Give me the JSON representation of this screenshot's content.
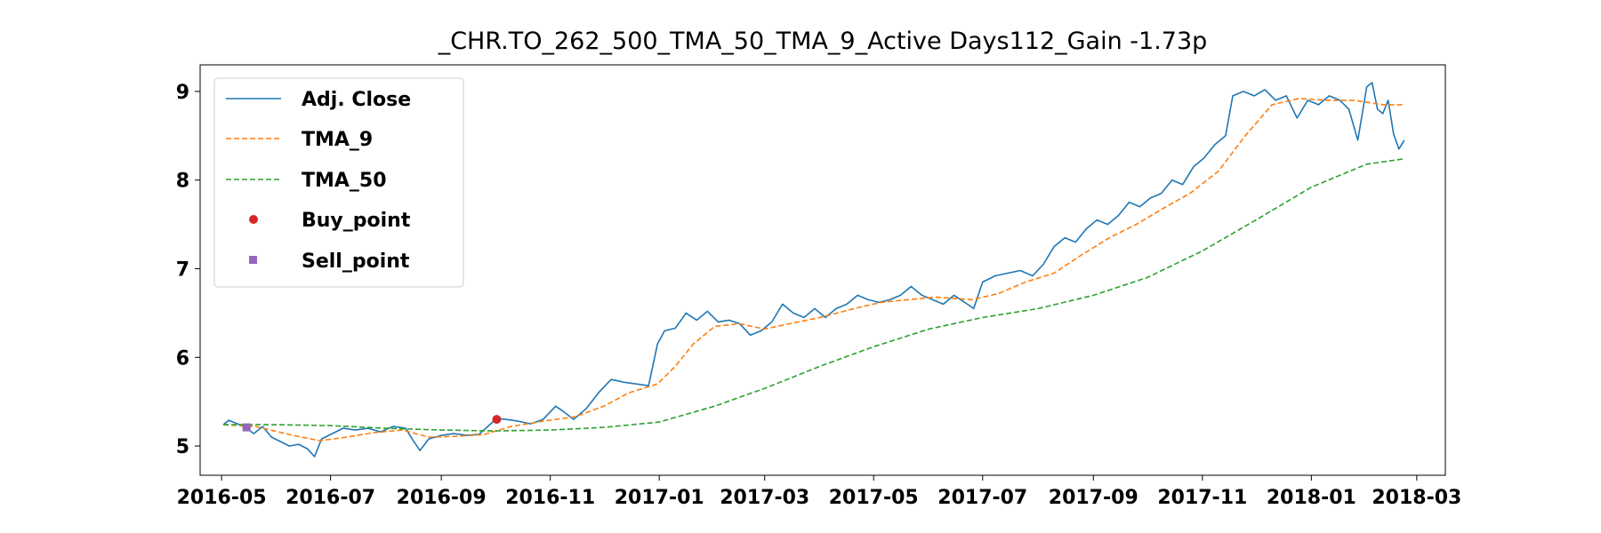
{
  "chart_data": {
    "type": "line",
    "title": "_CHR.TO_262_500_TMA_50_TMA_9_Active Days112_Gain  -1.73p",
    "xlabel": "",
    "ylabel": "",
    "xlim": [
      "2016-04-19",
      "2018-03-17"
    ],
    "ylim": [
      4.67,
      9.3
    ],
    "xticks": [
      "2016-05",
      "2016-07",
      "2016-09",
      "2016-11",
      "2017-01",
      "2017-03",
      "2017-05",
      "2017-07",
      "2017-09",
      "2017-11",
      "2018-01",
      "2018-03"
    ],
    "yticks": [
      5,
      6,
      7,
      8,
      9
    ],
    "grid": false,
    "legend_position": "upper-left",
    "series": [
      {
        "name": "Adj. Close",
        "color": "#1f77b4",
        "style": "solid",
        "points": [
          [
            "2016-05-02",
            5.24
          ],
          [
            "2016-05-05",
            5.29
          ],
          [
            "2016-05-10",
            5.25
          ],
          [
            "2016-05-15",
            5.2
          ],
          [
            "2016-05-19",
            5.14
          ],
          [
            "2016-05-24",
            5.22
          ],
          [
            "2016-05-29",
            5.1
          ],
          [
            "2016-06-03",
            5.05
          ],
          [
            "2016-06-08",
            5.0
          ],
          [
            "2016-06-13",
            5.02
          ],
          [
            "2016-06-18",
            4.97
          ],
          [
            "2016-06-22",
            4.88
          ],
          [
            "2016-06-26",
            5.08
          ],
          [
            "2016-07-01",
            5.13
          ],
          [
            "2016-07-08",
            5.2
          ],
          [
            "2016-07-15",
            5.18
          ],
          [
            "2016-07-22",
            5.2
          ],
          [
            "2016-07-29",
            5.16
          ],
          [
            "2016-08-05",
            5.22
          ],
          [
            "2016-08-12",
            5.2
          ],
          [
            "2016-08-16",
            5.07
          ],
          [
            "2016-08-20",
            4.95
          ],
          [
            "2016-08-25",
            5.08
          ],
          [
            "2016-09-01",
            5.12
          ],
          [
            "2016-09-08",
            5.14
          ],
          [
            "2016-09-15",
            5.12
          ],
          [
            "2016-09-22",
            5.13
          ],
          [
            "2016-09-27",
            5.22
          ],
          [
            "2016-10-02",
            5.31
          ],
          [
            "2016-10-07",
            5.3
          ],
          [
            "2016-10-14",
            5.28
          ],
          [
            "2016-10-21",
            5.25
          ],
          [
            "2016-10-28",
            5.3
          ],
          [
            "2016-11-04",
            5.45
          ],
          [
            "2016-11-09",
            5.38
          ],
          [
            "2016-11-14",
            5.3
          ],
          [
            "2016-11-21",
            5.42
          ],
          [
            "2016-11-28",
            5.6
          ],
          [
            "2016-12-05",
            5.75
          ],
          [
            "2016-12-12",
            5.72
          ],
          [
            "2016-12-19",
            5.7
          ],
          [
            "2016-12-26",
            5.68
          ],
          [
            "2016-12-31",
            6.15
          ],
          [
            "2017-01-04",
            6.3
          ],
          [
            "2017-01-10",
            6.33
          ],
          [
            "2017-01-16",
            6.5
          ],
          [
            "2017-01-22",
            6.42
          ],
          [
            "2017-01-28",
            6.52
          ],
          [
            "2017-02-03",
            6.4
          ],
          [
            "2017-02-09",
            6.42
          ],
          [
            "2017-02-15",
            6.38
          ],
          [
            "2017-02-21",
            6.25
          ],
          [
            "2017-02-27",
            6.3
          ],
          [
            "2017-03-05",
            6.4
          ],
          [
            "2017-03-11",
            6.6
          ],
          [
            "2017-03-17",
            6.5
          ],
          [
            "2017-03-23",
            6.45
          ],
          [
            "2017-03-29",
            6.55
          ],
          [
            "2017-04-04",
            6.45
          ],
          [
            "2017-04-10",
            6.55
          ],
          [
            "2017-04-16",
            6.6
          ],
          [
            "2017-04-22",
            6.7
          ],
          [
            "2017-04-28",
            6.65
          ],
          [
            "2017-05-04",
            6.62
          ],
          [
            "2017-05-10",
            6.65
          ],
          [
            "2017-05-16",
            6.7
          ],
          [
            "2017-05-22",
            6.8
          ],
          [
            "2017-05-28",
            6.7
          ],
          [
            "2017-06-03",
            6.65
          ],
          [
            "2017-06-09",
            6.6
          ],
          [
            "2017-06-15",
            6.7
          ],
          [
            "2017-06-21",
            6.62
          ],
          [
            "2017-06-26",
            6.55
          ],
          [
            "2017-07-01",
            6.85
          ],
          [
            "2017-07-08",
            6.92
          ],
          [
            "2017-07-15",
            6.95
          ],
          [
            "2017-07-22",
            6.98
          ],
          [
            "2017-07-29",
            6.92
          ],
          [
            "2017-08-04",
            7.05
          ],
          [
            "2017-08-10",
            7.25
          ],
          [
            "2017-08-16",
            7.35
          ],
          [
            "2017-08-22",
            7.3
          ],
          [
            "2017-08-28",
            7.45
          ],
          [
            "2017-09-03",
            7.55
          ],
          [
            "2017-09-09",
            7.5
          ],
          [
            "2017-09-15",
            7.6
          ],
          [
            "2017-09-21",
            7.75
          ],
          [
            "2017-09-27",
            7.7
          ],
          [
            "2017-10-03",
            7.8
          ],
          [
            "2017-10-09",
            7.85
          ],
          [
            "2017-10-15",
            8.0
          ],
          [
            "2017-10-21",
            7.95
          ],
          [
            "2017-10-27",
            8.15
          ],
          [
            "2017-11-02",
            8.25
          ],
          [
            "2017-11-08",
            8.4
          ],
          [
            "2017-11-14",
            8.5
          ],
          [
            "2017-11-18",
            8.95
          ],
          [
            "2017-11-24",
            9.0
          ],
          [
            "2017-11-30",
            8.95
          ],
          [
            "2017-12-06",
            9.02
          ],
          [
            "2017-12-12",
            8.9
          ],
          [
            "2017-12-18",
            8.95
          ],
          [
            "2017-12-24",
            8.7
          ],
          [
            "2017-12-30",
            8.9
          ],
          [
            "2018-01-05",
            8.85
          ],
          [
            "2018-01-11",
            8.95
          ],
          [
            "2018-01-17",
            8.9
          ],
          [
            "2018-01-22",
            8.8
          ],
          [
            "2018-01-27",
            8.45
          ],
          [
            "2018-02-01",
            9.05
          ],
          [
            "2018-02-04",
            9.1
          ],
          [
            "2018-02-07",
            8.8
          ],
          [
            "2018-02-10",
            8.75
          ],
          [
            "2018-02-13",
            8.9
          ],
          [
            "2018-02-16",
            8.52
          ],
          [
            "2018-02-19",
            8.35
          ],
          [
            "2018-02-22",
            8.45
          ]
        ]
      },
      {
        "name": "TMA_9",
        "color": "#ff7f0e",
        "style": "dashed",
        "points": [
          [
            "2016-05-02",
            5.24
          ],
          [
            "2016-05-20",
            5.22
          ],
          [
            "2016-06-10",
            5.12
          ],
          [
            "2016-06-25",
            5.06
          ],
          [
            "2016-07-10",
            5.1
          ],
          [
            "2016-07-25",
            5.15
          ],
          [
            "2016-08-10",
            5.18
          ],
          [
            "2016-08-25",
            5.1
          ],
          [
            "2016-09-10",
            5.11
          ],
          [
            "2016-09-25",
            5.13
          ],
          [
            "2016-10-10",
            5.22
          ],
          [
            "2016-10-28",
            5.28
          ],
          [
            "2016-11-15",
            5.33
          ],
          [
            "2016-12-01",
            5.45
          ],
          [
            "2016-12-15",
            5.6
          ],
          [
            "2016-12-31",
            5.7
          ],
          [
            "2017-01-10",
            5.9
          ],
          [
            "2017-01-20",
            6.15
          ],
          [
            "2017-02-01",
            6.35
          ],
          [
            "2017-02-15",
            6.38
          ],
          [
            "2017-03-01",
            6.32
          ],
          [
            "2017-03-15",
            6.38
          ],
          [
            "2017-04-01",
            6.45
          ],
          [
            "2017-04-20",
            6.55
          ],
          [
            "2017-05-05",
            6.62
          ],
          [
            "2017-05-20",
            6.65
          ],
          [
            "2017-06-05",
            6.68
          ],
          [
            "2017-06-25",
            6.65
          ],
          [
            "2017-07-10",
            6.72
          ],
          [
            "2017-07-25",
            6.85
          ],
          [
            "2017-08-10",
            6.95
          ],
          [
            "2017-08-25",
            7.15
          ],
          [
            "2017-09-10",
            7.35
          ],
          [
            "2017-09-25",
            7.5
          ],
          [
            "2017-10-10",
            7.68
          ],
          [
            "2017-10-25",
            7.85
          ],
          [
            "2017-11-10",
            8.1
          ],
          [
            "2017-11-25",
            8.5
          ],
          [
            "2017-12-10",
            8.85
          ],
          [
            "2017-12-25",
            8.92
          ],
          [
            "2018-01-10",
            8.9
          ],
          [
            "2018-01-25",
            8.9
          ],
          [
            "2018-02-10",
            8.85
          ],
          [
            "2018-02-22",
            8.85
          ]
        ]
      },
      {
        "name": "TMA_50",
        "color": "#2ca02c",
        "style": "dashed",
        "points": [
          [
            "2016-05-02",
            5.24
          ],
          [
            "2016-06-01",
            5.24
          ],
          [
            "2016-07-01",
            5.23
          ],
          [
            "2016-08-01",
            5.2
          ],
          [
            "2016-09-01",
            5.18
          ],
          [
            "2016-10-01",
            5.17
          ],
          [
            "2016-11-01",
            5.18
          ],
          [
            "2016-12-01",
            5.21
          ],
          [
            "2017-01-01",
            5.27
          ],
          [
            "2017-02-01",
            5.45
          ],
          [
            "2017-03-01",
            5.65
          ],
          [
            "2017-04-01",
            5.9
          ],
          [
            "2017-05-01",
            6.12
          ],
          [
            "2017-06-01",
            6.32
          ],
          [
            "2017-07-01",
            6.45
          ],
          [
            "2017-08-01",
            6.55
          ],
          [
            "2017-09-01",
            6.7
          ],
          [
            "2017-10-01",
            6.9
          ],
          [
            "2017-11-01",
            7.2
          ],
          [
            "2017-12-01",
            7.55
          ],
          [
            "2018-01-01",
            7.92
          ],
          [
            "2018-02-01",
            8.18
          ],
          [
            "2018-02-22",
            8.24
          ]
        ]
      }
    ],
    "buy_points": {
      "name": "Buy_point",
      "color": "#d62728",
      "marker": "circle",
      "points": [
        [
          "2016-10-02",
          5.3
        ]
      ]
    },
    "sell_points": {
      "name": "Sell_point",
      "color": "#9467bd",
      "marker": "square",
      "points": [
        [
          "2016-05-15",
          5.21
        ]
      ]
    }
  }
}
